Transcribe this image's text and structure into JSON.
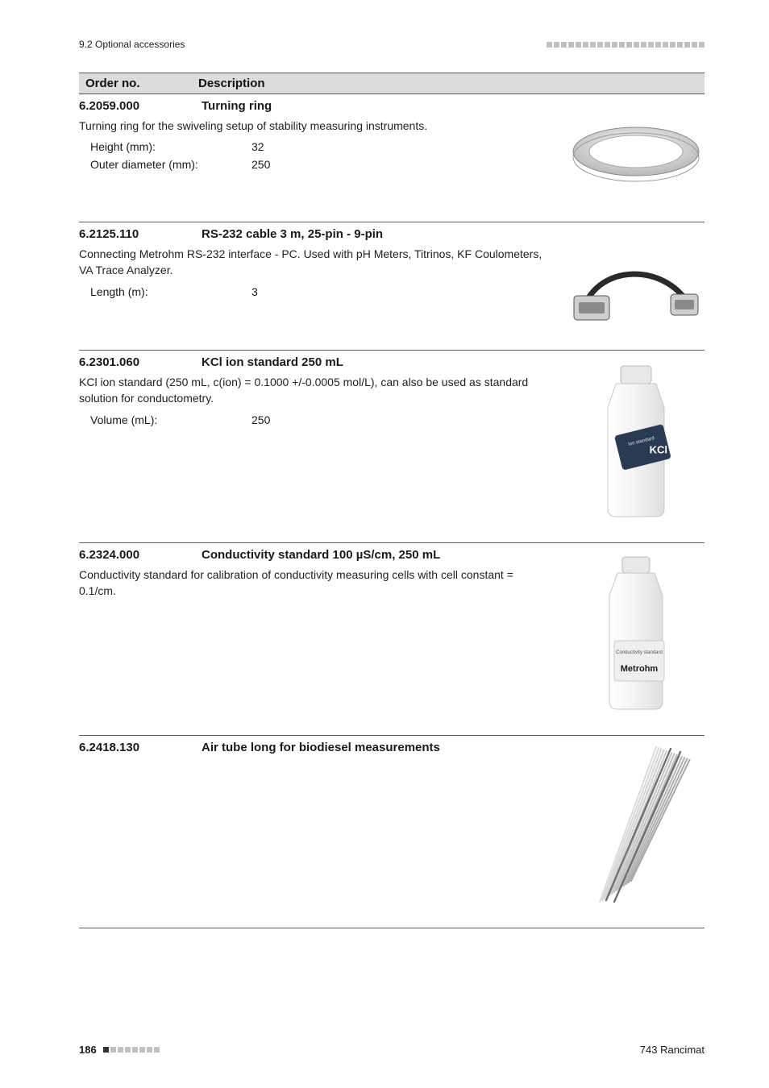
{
  "colors": {
    "head_bg": "#dcdcdc",
    "rule": "#5a5a5a",
    "dot_light": "#bfbfbf",
    "dot_dark": "#333333",
    "text": "#1a1a1a"
  },
  "runhead": {
    "section": "9.2 Optional accessories"
  },
  "columns": {
    "order": "Order no.",
    "desc": "Description"
  },
  "entries": [
    {
      "order": "6.2059.000",
      "title": "Turning ring",
      "desc": "Turning ring for the swiveling setup of stability measuring instruments.",
      "specs": [
        {
          "k": "Height (mm):",
          "v": "32"
        },
        {
          "k": "Outer diameter (mm):",
          "v": "250"
        }
      ],
      "thumb": "ring"
    },
    {
      "order": "6.2125.110",
      "title": "RS-232 cable 3 m, 25-pin - 9-pin",
      "desc": "Connecting Metrohm RS-232 interface - PC. Used with pH Meters, Titrinos, KF Coulometers, VA Trace Analyzer.",
      "specs": [
        {
          "k": "Length (m):",
          "v": "3"
        }
      ],
      "thumb": "cable"
    },
    {
      "order": "6.2301.060",
      "title": "KCl ion standard 250 mL",
      "desc": "KCl ion standard (250 mL, c(ion) = 0.1000 +/-0.0005 mol/L), can also be used as standard solution for conductometry.",
      "specs": [
        {
          "k": "Volume (mL):",
          "v": "250"
        }
      ],
      "thumb": "bottle_kcl",
      "tall": true
    },
    {
      "order": "6.2324.000",
      "title": "Conductivity standard 100 µS/cm, 250 mL",
      "desc": "Conductivity standard for calibration of conductivity measuring cells with cell constant = 0.1/cm.",
      "specs": [],
      "thumb": "bottle_cond",
      "tall": true
    },
    {
      "order": "6.2418.130",
      "title": "Air tube long for biodiesel measurements",
      "desc": "",
      "specs": [],
      "thumb": "tubes",
      "tall": true
    }
  ],
  "footer": {
    "page": "186",
    "doc": "743 Rancimat"
  }
}
